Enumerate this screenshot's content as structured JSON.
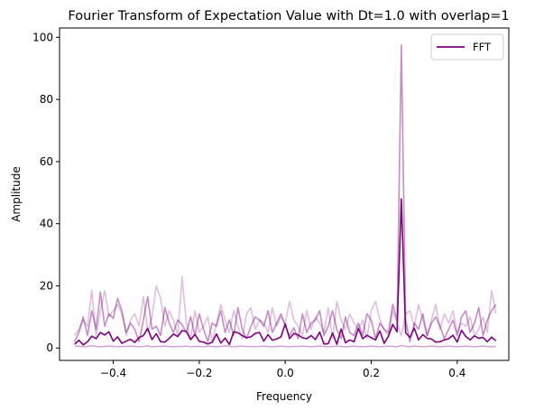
{
  "chart_data": {
    "type": "line",
    "title": "Fourier Transform of Expectation Value with Dt=1.0 with overlap=1",
    "xlabel": "Frequency",
    "ylabel": "Amplitude",
    "xlim": [
      -0.525,
      0.52
    ],
    "ylim": [
      -4,
      103
    ],
    "xticks": [
      -0.4,
      -0.2,
      0.0,
      0.2,
      0.4
    ],
    "xtick_labels": [
      "−0.4",
      "−0.2",
      "0.0",
      "0.2",
      "0.4"
    ],
    "yticks": [
      0,
      20,
      40,
      60,
      80,
      100
    ],
    "ytick_labels": [
      "0",
      "20",
      "40",
      "60",
      "80",
      "100"
    ],
    "grid": false,
    "legend_position": "upper right",
    "x": [
      -0.49,
      -0.48,
      -0.47,
      -0.46,
      -0.45,
      -0.44,
      -0.43,
      -0.42,
      -0.41,
      -0.4,
      -0.39,
      -0.38,
      -0.37,
      -0.36,
      -0.35,
      -0.34,
      -0.33,
      -0.32,
      -0.31,
      -0.3,
      -0.29,
      -0.28,
      -0.27,
      -0.26,
      -0.25,
      -0.24,
      -0.23,
      -0.22,
      -0.21,
      -0.2,
      -0.19,
      -0.18,
      -0.17,
      -0.16,
      -0.15,
      -0.14,
      -0.13,
      -0.12,
      -0.11,
      -0.1,
      -0.09,
      -0.08,
      -0.07,
      -0.06,
      -0.05,
      -0.04,
      -0.03,
      -0.02,
      -0.01,
      0.0,
      0.01,
      0.02,
      0.03,
      0.04,
      0.05,
      0.06,
      0.07,
      0.08,
      0.09,
      0.1,
      0.11,
      0.12,
      0.13,
      0.14,
      0.15,
      0.16,
      0.17,
      0.18,
      0.19,
      0.2,
      0.21,
      0.22,
      0.23,
      0.24,
      0.25,
      0.26,
      0.27,
      0.28,
      0.29,
      0.3,
      0.31,
      0.32,
      0.33,
      0.34,
      0.35,
      0.36,
      0.37,
      0.38,
      0.39,
      0.4,
      0.41,
      0.42,
      0.43,
      0.44,
      0.45,
      0.46,
      0.47,
      0.48,
      0.49
    ],
    "series": [
      {
        "name": "FFT",
        "color": "#800080",
        "opacity": 1,
        "width": 1.6,
        "values": [
          1.2,
          2.5,
          1.0,
          2.0,
          3.8,
          3.0,
          5.0,
          4.2,
          5.2,
          2.2,
          3.6,
          1.5,
          2.2,
          2.8,
          1.8,
          3.4,
          4.0,
          6.3,
          2.7,
          4.6,
          2.0,
          1.9,
          3.1,
          4.5,
          3.7,
          5.6,
          5.3,
          2.7,
          4.4,
          2.1,
          1.9,
          1.3,
          1.8,
          4.5,
          1.6,
          3.2,
          1.1,
          5.2,
          4.9,
          4.0,
          3.3,
          3.6,
          4.7,
          5.0,
          2.2,
          4.3,
          2.5,
          2.9,
          3.6,
          7.8,
          3.0,
          4.7,
          4.2,
          3.3,
          3.0,
          4.0,
          2.7,
          5.1,
          1.3,
          1.4,
          4.8,
          1.2,
          6.1,
          1.7,
          2.6,
          2.0,
          6.3,
          3.0,
          4.1,
          3.3,
          2.6,
          5.5,
          1.5,
          3.8,
          7.6,
          5.2,
          48.0,
          4.9,
          3.4,
          6.4,
          2.6,
          4.3,
          3.1,
          2.9,
          1.9,
          2.0,
          2.6,
          3.0,
          4.1,
          1.9,
          5.7,
          3.7,
          2.6,
          3.9,
          3.1,
          3.4,
          2.0,
          3.5,
          2.3
        ]
      },
      {
        "name": "",
        "color": "#800080",
        "opacity": 0.45,
        "width": 1.6,
        "values": [
          2.0,
          5.0,
          10.0,
          4.0,
          12.0,
          6.0,
          18.0,
          7.0,
          11.0,
          9.5,
          16.0,
          12.0,
          5.0,
          8.0,
          6.0,
          2.0,
          9.0,
          16.5,
          6.0,
          7.0,
          4.0,
          13.0,
          8.0,
          5.0,
          9.0,
          7.5,
          5.0,
          10.0,
          4.0,
          11.0,
          6.0,
          2.0,
          8.0,
          7.0,
          12.0,
          5.0,
          9.0,
          4.0,
          13.0,
          6.0,
          3.0,
          7.0,
          10.0,
          9.0,
          7.0,
          12.0,
          5.0,
          8.0,
          11.0,
          7.0,
          4.0,
          6.5,
          3.0,
          11.0,
          5.0,
          8.0,
          9.0,
          12.0,
          4.0,
          7.0,
          12.0,
          6.0,
          3.0,
          10.0,
          5.0,
          4.0,
          8.0,
          4.0,
          11.0,
          9.0,
          3.0,
          8.0,
          6.0,
          5.0,
          14.0,
          9.0,
          97.5,
          9.0,
          2.0,
          8.0,
          6.0,
          11.0,
          4.0,
          8.0,
          10.0,
          7.0,
          3.0,
          6.0,
          9.0,
          4.0,
          10.0,
          12.0,
          5.0,
          8.0,
          13.0,
          4.0,
          9.0,
          12.0,
          14.0
        ]
      },
      {
        "name": "",
        "color": "#800080",
        "opacity": 0.25,
        "width": 1.6,
        "values": [
          4.0,
          6.0,
          9.0,
          7.0,
          18.5,
          4.0,
          12.0,
          18.5,
          10.0,
          12.0,
          14.0,
          11.0,
          4.0,
          9.0,
          11.0,
          7.0,
          16.5,
          5.0,
          10.0,
          20.0,
          16.0,
          7.0,
          12.0,
          9.0,
          4.0,
          23.0,
          8.0,
          3.0,
          12.0,
          5.0,
          7.0,
          10.0,
          2.0,
          8.0,
          14.0,
          9.0,
          5.0,
          12.0,
          7.0,
          3.0,
          11.0,
          13.0,
          6.0,
          9.0,
          8.0,
          5.0,
          13.0,
          7.0,
          10.0,
          8.0,
          15.0,
          9.0,
          7.0,
          4.0,
          12.0,
          6.0,
          10.0,
          8.0,
          5.0,
          13.0,
          3.0,
          15.0,
          9.0,
          6.0,
          11.0,
          8.0,
          6.0,
          9.0,
          3.0,
          12.0,
          15.0,
          9.0,
          6.0,
          4.0,
          12.0,
          8.0,
          4.0,
          11.0,
          12.0,
          7.0,
          14.0,
          9.0,
          4.0,
          9.0,
          14.0,
          6.0,
          11.0,
          8.0,
          12.0,
          5.0,
          8.0,
          7.0,
          10.0,
          4.0,
          6.0,
          10.0,
          5.0,
          18.5,
          11.0
        ]
      },
      {
        "name": "",
        "color": "#800080",
        "opacity": 0.35,
        "width": 1.6,
        "values": [
          0.5,
          0.6,
          0.4,
          0.5,
          0.7,
          0.5,
          0.4,
          0.5,
          0.6,
          0.5,
          0.4,
          0.5,
          0.5,
          0.6,
          0.5,
          0.4,
          0.5,
          0.7,
          0.4,
          0.5,
          0.5,
          0.6,
          0.5,
          0.4,
          0.5,
          0.5,
          0.6,
          0.4,
          0.5,
          0.5,
          0.4,
          0.6,
          0.5,
          0.4,
          0.5,
          0.7,
          0.5,
          0.4,
          0.5,
          0.6,
          0.5,
          0.5,
          0.4,
          0.5,
          0.6,
          0.5,
          0.4,
          0.5,
          0.6,
          0.5,
          0.4,
          0.5,
          0.5,
          0.6,
          0.5,
          0.4,
          0.5,
          0.6,
          0.5,
          0.4,
          0.5,
          0.6,
          0.5,
          0.4,
          0.5,
          0.6,
          0.5,
          0.4,
          0.5,
          0.6,
          0.5,
          0.4,
          0.5,
          0.6,
          0.5,
          0.4,
          0.8,
          0.5,
          0.4,
          0.6,
          0.5,
          0.4,
          0.5,
          0.6,
          0.5,
          0.4,
          0.5,
          0.6,
          0.5,
          0.4,
          0.5,
          0.6,
          0.5,
          0.4,
          0.5,
          0.6,
          0.5,
          0.4,
          0.5
        ]
      }
    ]
  }
}
